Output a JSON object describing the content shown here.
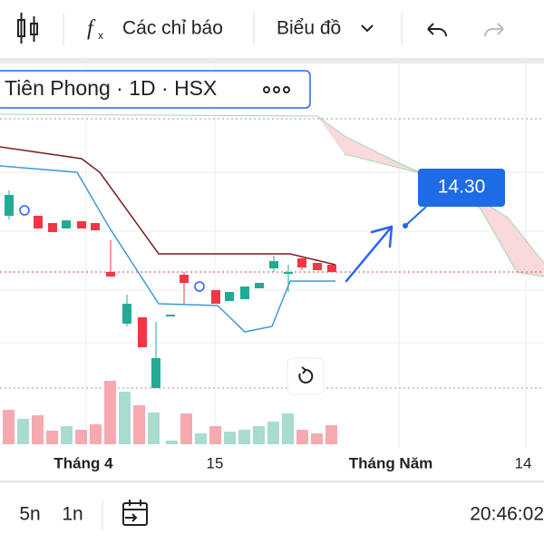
{
  "toolbar": {
    "indicators": "Các chỉ báo",
    "chart_type": "Biểu đồ"
  },
  "symbol": {
    "label": "Tiên Phong · 1D · HSX"
  },
  "price_label": "14.30",
  "x_axis": [
    "Tháng 4",
    "15",
    "Tháng Năm",
    "14"
  ],
  "bottom_bar": {
    "ranges": [
      "5n",
      "1n"
    ],
    "clock": "20:46:02"
  }
}
